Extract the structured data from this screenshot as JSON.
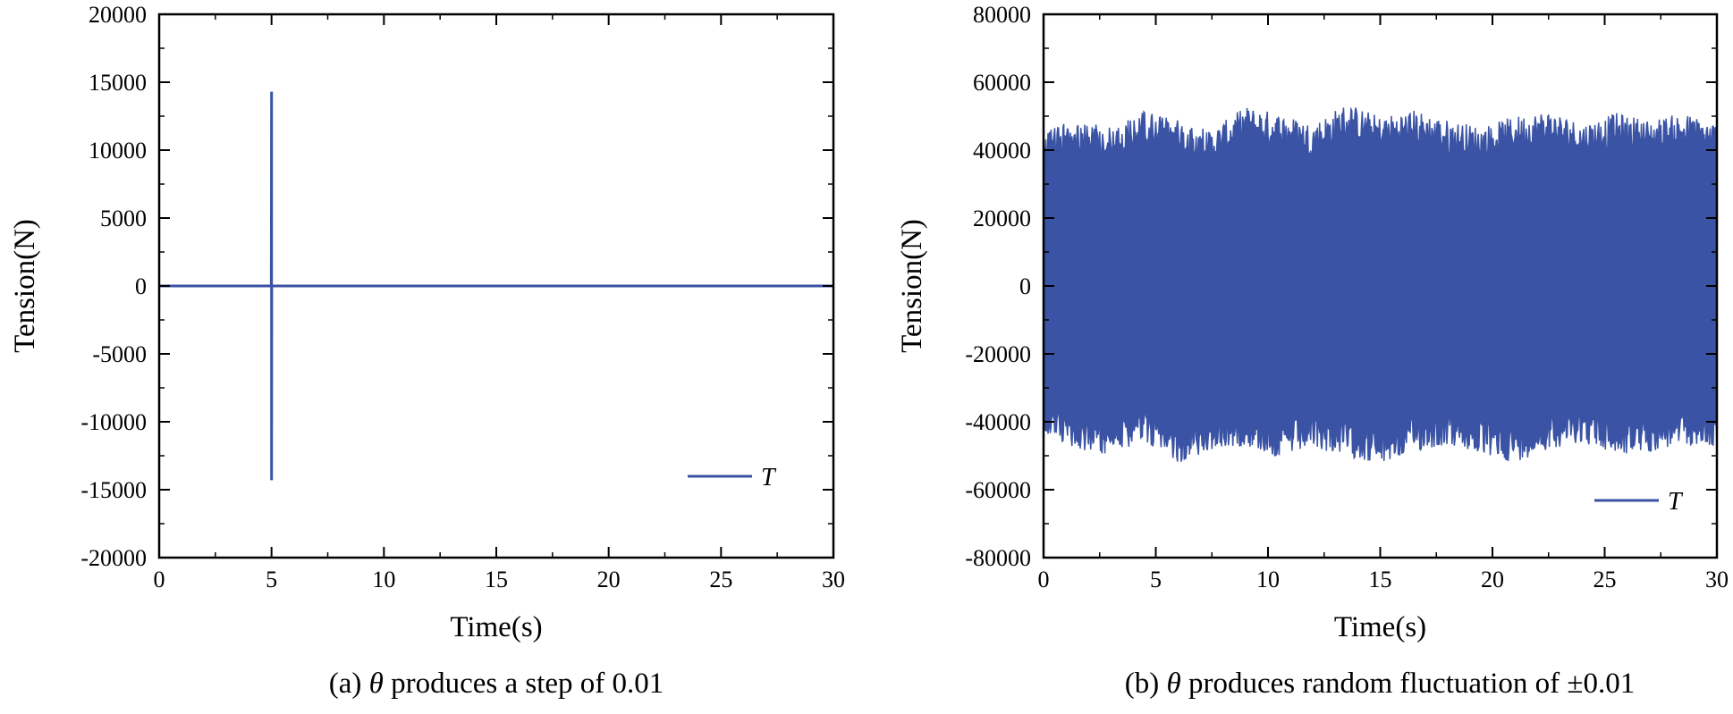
{
  "chart_data": [
    {
      "type": "line",
      "subplot_label": "(a)",
      "caption_symbol": "θ",
      "caption_text": " produces a step of 0.01",
      "xlabel": "Time(s)",
      "ylabel": "Tension(N)",
      "xlim": [
        0,
        30
      ],
      "ylim": [
        -20000,
        20000
      ],
      "xticks": [
        "0",
        "5",
        "10",
        "15",
        "20",
        "25",
        "30"
      ],
      "yticks": [
        "20000",
        "15000",
        "10000",
        "5000",
        "0",
        "-5000",
        "-10000",
        "-15000",
        "-20000"
      ],
      "legend": {
        "label": "T",
        "position": "lower-right"
      },
      "series": [
        {
          "name": "T",
          "color": "#3a53a4",
          "x": [
            0,
            4.99,
            5.0,
            5.0,
            5.01,
            30
          ],
          "y": [
            0,
            0,
            14300,
            -14300,
            0,
            0
          ]
        }
      ]
    },
    {
      "type": "line",
      "subplot_label": "(b)",
      "caption_symbol": "θ",
      "caption_text": " produces random fluctuation of ±0.01",
      "xlabel": "Time(s)",
      "ylabel": "Tension(N)",
      "xlim": [
        0,
        30
      ],
      "ylim": [
        -80000,
        80000
      ],
      "xticks": [
        "0",
        "5",
        "10",
        "15",
        "20",
        "25",
        "30"
      ],
      "yticks": [
        "80000",
        "60000",
        "40000",
        "20000",
        "0",
        "-20000",
        "-40000",
        "-60000",
        "-80000"
      ],
      "legend": {
        "label": "T",
        "position": "lower-right"
      },
      "series": [
        {
          "name": "T",
          "color": "#3a53a4",
          "x": [
            0,
            1.5,
            3,
            4.5,
            6,
            7.5,
            9,
            10.5,
            12,
            13.5,
            15,
            16.5,
            18,
            19.5,
            21,
            22.5,
            24,
            25.5,
            27,
            28.5,
            30
          ],
          "upper_envelope": [
            45000,
            50000,
            47000,
            52000,
            49000,
            46000,
            53000,
            51000,
            48000,
            54000,
            50000,
            52000,
            49000,
            47000,
            50000,
            52000,
            48000,
            51000,
            49000,
            51000,
            48000
          ],
          "lower_envelope": [
            -44000,
            -48000,
            -50000,
            -46000,
            -52000,
            -49000,
            -47000,
            -51000,
            -48000,
            -50000,
            -53000,
            -49000,
            -47000,
            -50000,
            -52000,
            -48000,
            -46000,
            -50000,
            -49000,
            -47000,
            -48000
          ]
        }
      ]
    }
  ]
}
